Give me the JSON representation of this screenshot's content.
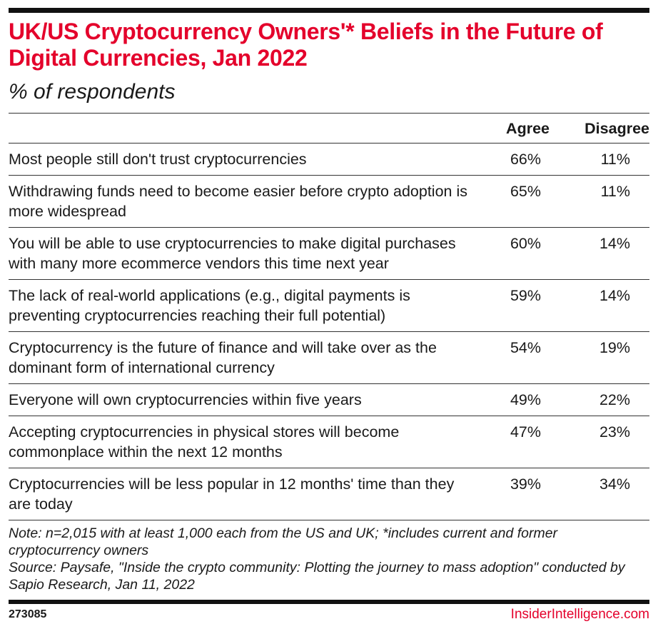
{
  "title": "UK/US Cryptocurrency Owners'* Beliefs in the Future of Digital Currencies, Jan 2022",
  "subtitle": "% of respondents",
  "chart_data": {
    "type": "table",
    "columns": [
      "Agree",
      "Disagree"
    ],
    "rows": [
      {
        "label": "Most people still don't trust cryptocurrencies",
        "agree": "66%",
        "disagree": "11%"
      },
      {
        "label": "Withdrawing funds need to become easier before crypto adoption is more widespread",
        "agree": "65%",
        "disagree": "11%"
      },
      {
        "label": "You will be able to use cryptocurrencies to make digital purchases with many more ecommerce vendors this time next year",
        "agree": "60%",
        "disagree": "14%"
      },
      {
        "label": "The lack of real-world applications (e.g., digital payments is preventing cryptocurrencies reaching their full potential)",
        "agree": "59%",
        "disagree": "14%"
      },
      {
        "label": "Cryptocurrency is the future of finance and will take over as the dominant form of international currency",
        "agree": "54%",
        "disagree": "19%"
      },
      {
        "label": "Everyone will own cryptocurrencies within five years",
        "agree": "49%",
        "disagree": "22%"
      },
      {
        "label": "Accepting cryptocurrencies in physical stores will become commonplace within the next 12 months",
        "agree": "47%",
        "disagree": "23%"
      },
      {
        "label": "Cryptocurrencies will be less popular in 12 months' time than they are today",
        "agree": "39%",
        "disagree": "34%"
      }
    ]
  },
  "note": "Note: n=2,015 with at least 1,000 each from the US and UK; *includes current and former cryptocurrency owners",
  "source": "Source: Paysafe, \"Inside the crypto community: Plotting the journey to mass adoption\" conducted by Sapio Research, Jan 11, 2022",
  "chart_id": "273085",
  "brand": "InsiderIntelligence.com",
  "colors": {
    "accent": "#e4002b",
    "text": "#1a1a1a"
  }
}
